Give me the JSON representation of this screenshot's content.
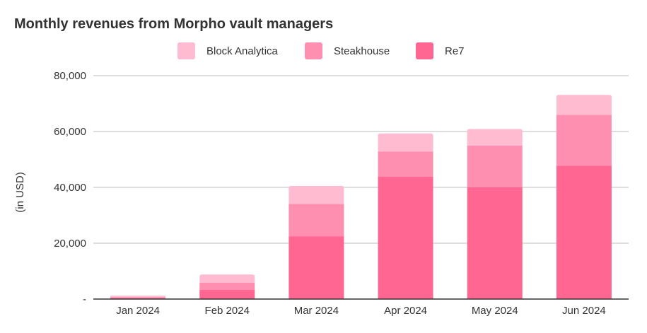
{
  "chart_data": {
    "type": "bar",
    "stacked": true,
    "title": "Monthly revenues from Morpho vault managers",
    "xlabel": "",
    "ylabel": "(in USD)",
    "categories": [
      "Jan 2024",
      "Feb 2024",
      "Mar 2024",
      "Apr 2024",
      "May 2024",
      "Jun 2024"
    ],
    "series": [
      {
        "name": "Re7",
        "color": "#ff6692",
        "values": [
          400,
          3300,
          22500,
          43800,
          40000,
          47800
        ]
      },
      {
        "name": "Steakhouse",
        "color": "#ff8fb0",
        "values": [
          300,
          2600,
          11600,
          9000,
          15000,
          18200
        ]
      },
      {
        "name": "Block Analytica",
        "color": "#ffbbd0",
        "values": [
          500,
          2900,
          6400,
          6500,
          5900,
          7100
        ]
      }
    ],
    "legend_order": [
      "Block Analytica",
      "Steakhouse",
      "Re7"
    ],
    "ylim": [
      0,
      80000
    ],
    "yticks": [
      0,
      20000,
      40000,
      60000,
      80000
    ],
    "ytick_labels": [
      "-",
      "20,000",
      "40,000",
      "60,000",
      "80,000"
    ],
    "grid": true,
    "legend_position": "top"
  }
}
